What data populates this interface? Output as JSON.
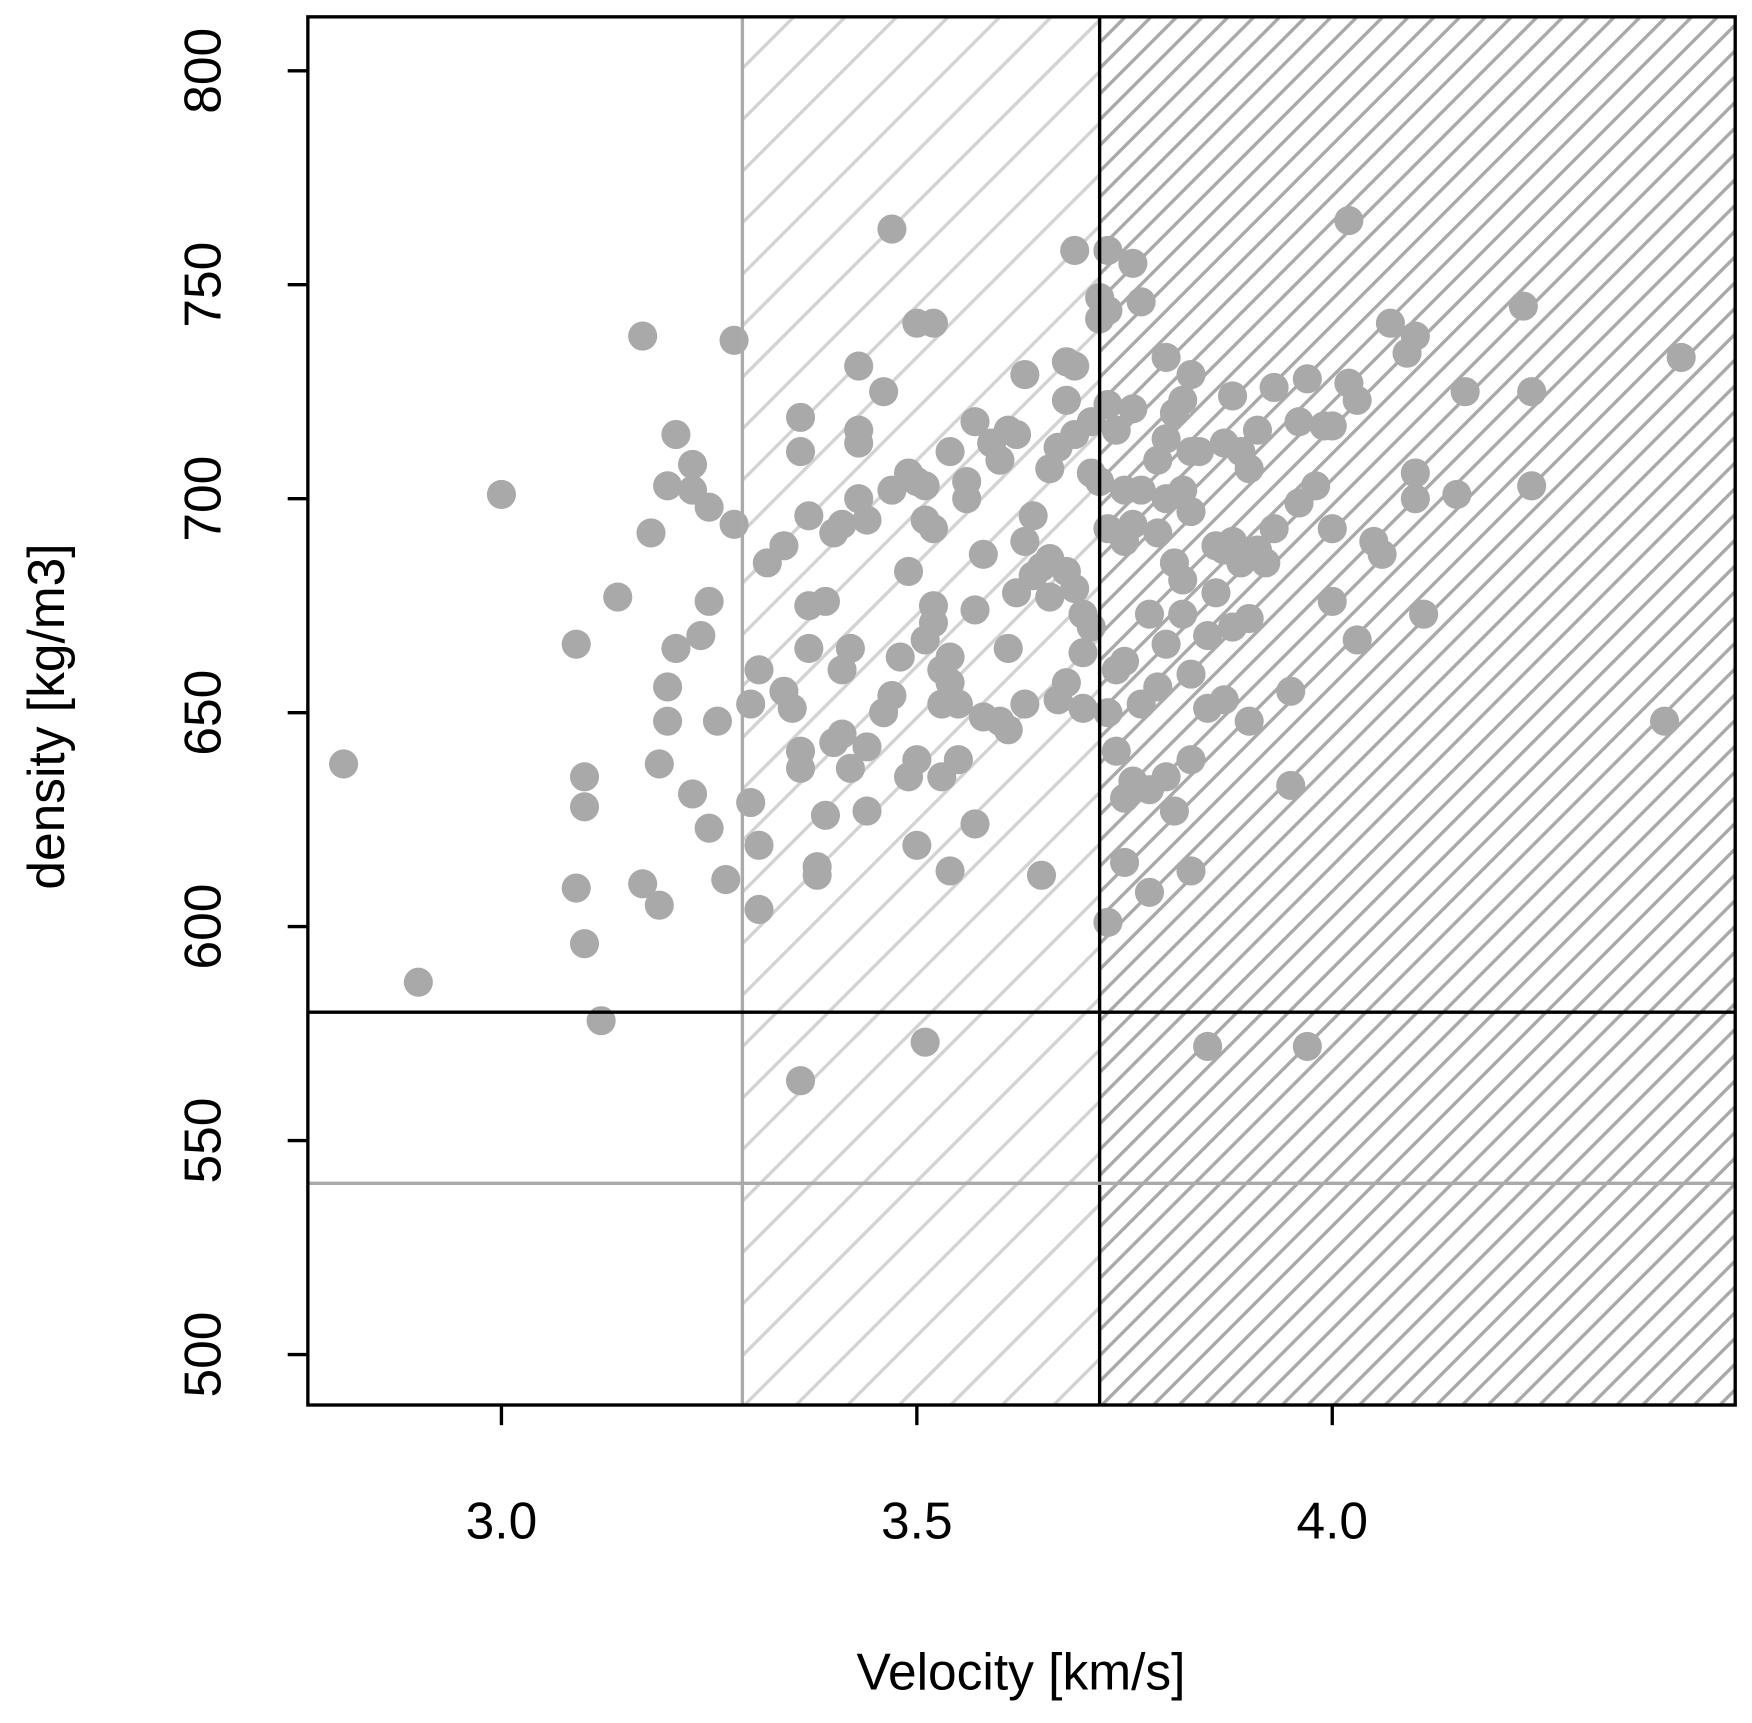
{
  "chart_data": {
    "type": "scatter",
    "x_label": "Velocity [km/s]",
    "y_label": "density  [kg/m3]",
    "xlim": [
      2.767,
      4.485
    ],
    "ylim": [
      488.2,
      812.6
    ],
    "xticks": [
      {
        "value": 3,
        "label": "3.0"
      },
      3.5,
      {
        "value": 4,
        "label": "4.0"
      }
    ],
    "yticks": [
      500,
      550,
      600,
      650,
      700,
      750,
      800
    ],
    "color": "#a9a9a9",
    "vlines": [
      {
        "x": 3.29,
        "color": "#aaaaaa",
        "hatch_color": "#d3d3d3"
      },
      {
        "x": 3.72,
        "color": "#000000",
        "hatch_color": "#a9a9a9"
      }
    ],
    "hlines": [
      {
        "y": 580,
        "color": "#000000"
      },
      {
        "y": 540,
        "color": "#aaaaaa"
      }
    ],
    "x": [
      2.81,
      2.9,
      3.0,
      3.09,
      3.09,
      3.1,
      3.1,
      3.1,
      3.12,
      3.14,
      3.17,
      3.17,
      3.18,
      3.19,
      3.19,
      3.2,
      3.2,
      3.2,
      3.21,
      3.21,
      3.23,
      3.23,
      3.23,
      3.24,
      3.25,
      3.25,
      3.25,
      3.26,
      3.28,
      3.27,
      3.28,
      3.3,
      3.3,
      3.31,
      3.31,
      3.31,
      3.32,
      3.34,
      3.34,
      3.35,
      3.36,
      3.36,
      3.36,
      3.36,
      3.36,
      3.37,
      3.37,
      3.37,
      3.38,
      3.38,
      3.39,
      3.39,
      3.4,
      3.4,
      3.41,
      3.41,
      3.41,
      3.42,
      3.42,
      3.43,
      3.43,
      3.43,
      3.43,
      3.44,
      3.44,
      3.44,
      3.46,
      3.46,
      3.47,
      3.47,
      3.47,
      3.48,
      3.49,
      3.49,
      3.49,
      3.5,
      3.5,
      3.5,
      3.5,
      3.51,
      3.51,
      3.51,
      3.51,
      3.52,
      3.52,
      3.52,
      3.52,
      3.53,
      3.53,
      3.53,
      3.54,
      3.54,
      3.54,
      3.54,
      3.55,
      3.55,
      3.56,
      3.56,
      3.57,
      3.57,
      3.57,
      3.58,
      3.58,
      3.59,
      3.6,
      3.6,
      3.61,
      3.61,
      3.61,
      3.62,
      3.62,
      3.63,
      3.63,
      3.63,
      3.64,
      3.64,
      3.65,
      3.65,
      3.66,
      3.66,
      3.66,
      3.67,
      3.67,
      3.68,
      3.68,
      3.68,
      3.68,
      3.69,
      3.69,
      3.69,
      3.69,
      3.7,
      3.7,
      3.7,
      3.71,
      3.71,
      3.71,
      3.72,
      3.72,
      3.72,
      3.73,
      3.73,
      3.73,
      3.73,
      3.73,
      3.73,
      3.74,
      3.74,
      3.74,
      3.75,
      3.75,
      3.75,
      3.75,
      3.75,
      3.76,
      3.76,
      3.76,
      3.76,
      3.77,
      3.77,
      3.77,
      3.78,
      3.78,
      3.78,
      3.79,
      3.79,
      3.79,
      3.8,
      3.8,
      3.8,
      3.8,
      3.8,
      3.81,
      3.81,
      3.81,
      3.82,
      3.82,
      3.82,
      3.82,
      3.83,
      3.83,
      3.83,
      3.83,
      3.83,
      3.83,
      3.84,
      3.85,
      3.85,
      3.85,
      3.86,
      3.86,
      3.87,
      3.87,
      3.87,
      3.88,
      3.88,
      3.88,
      3.89,
      3.89,
      3.9,
      3.9,
      3.9,
      3.91,
      3.91,
      3.92,
      3.93,
      3.93,
      3.95,
      3.95,
      3.96,
      3.96,
      3.97,
      3.97,
      3.98,
      3.99,
      4.0,
      4.0,
      4.0,
      4.02,
      4.02,
      4.03,
      4.03,
      4.05,
      4.06,
      4.07,
      4.09,
      4.1,
      4.1,
      4.1,
      4.11,
      4.15,
      4.16,
      4.23,
      4.24,
      4.24,
      4.4,
      4.42
    ],
    "values": [
      638,
      587,
      701,
      666,
      609,
      635,
      628,
      596,
      578,
      677,
      738,
      610,
      692,
      605,
      638,
      703,
      656,
      648,
      715,
      665,
      708,
      702,
      631,
      668,
      698,
      676,
      623,
      648,
      737,
      611,
      694,
      652,
      629,
      660,
      619,
      604,
      685,
      689,
      655,
      651,
      719,
      711,
      641,
      637,
      564,
      696,
      675,
      665,
      614,
      612,
      676,
      626,
      692,
      643,
      694,
      660,
      645,
      665,
      637,
      731,
      716,
      713,
      700,
      695,
      642,
      627,
      725,
      650,
      702,
      654,
      763,
      663,
      706,
      683,
      635,
      704,
      639,
      619,
      741,
      703,
      695,
      667,
      573,
      741,
      693,
      675,
      671,
      660,
      652,
      635,
      711,
      663,
      657,
      613,
      652,
      639,
      704,
      700,
      718,
      674,
      624,
      687,
      649,
      713,
      709,
      648,
      716,
      665,
      646,
      715,
      678,
      729,
      690,
      652,
      696,
      682,
      684,
      612,
      707,
      686,
      677,
      653,
      712,
      732,
      723,
      683,
      657,
      758,
      731,
      715,
      679,
      673,
      664,
      651,
      718,
      706,
      670,
      747,
      742,
      704,
      758,
      744,
      722,
      693,
      650,
      601,
      716,
      660,
      641,
      702,
      690,
      662,
      630,
      615,
      755,
      721,
      694,
      634,
      746,
      702,
      652,
      673,
      632,
      608,
      709,
      692,
      656,
      733,
      714,
      700,
      666,
      635,
      720,
      685,
      627,
      723,
      702,
      681,
      673,
      729,
      711,
      697,
      659,
      639,
      613,
      711,
      668,
      651,
      572,
      689,
      678,
      713,
      688,
      653,
      724,
      690,
      670,
      711,
      685,
      707,
      672,
      648,
      716,
      688,
      685,
      693,
      726,
      655,
      633,
      718,
      699,
      572,
      728,
      703,
      717,
      717,
      693,
      676,
      765,
      727,
      723,
      667,
      690,
      687,
      741,
      734,
      738,
      706,
      700,
      673,
      701,
      725,
      745,
      725,
      703,
      648,
      733
    ]
  }
}
